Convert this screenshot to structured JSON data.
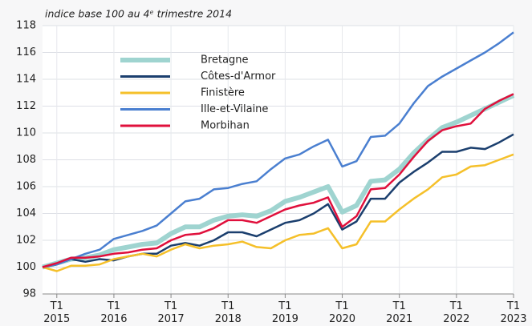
{
  "chart_data": {
    "type": "line",
    "title": "indice base 100 au 4ᵉ trimestre 2014",
    "categories": [
      null,
      "T1 2015",
      null,
      null,
      null,
      "T1 2016",
      null,
      null,
      null,
      "T1 2017",
      null,
      null,
      null,
      "T1 2018",
      null,
      null,
      null,
      "T1 2019",
      null,
      null,
      null,
      "T1 2020",
      null,
      null,
      null,
      "T1 2021",
      null,
      null,
      null,
      "T1 2022",
      null,
      null,
      null,
      "T1 2023"
    ],
    "ylim": [
      98,
      118
    ],
    "yticks": [
      98,
      100,
      102,
      104,
      106,
      108,
      110,
      112,
      114,
      116,
      118
    ],
    "grid": true,
    "legend": "upper-left",
    "series": [
      {
        "name": "Bretagne",
        "color": "#9fd4d0",
        "values": [
          100,
          100.3,
          100.6,
          100.7,
          100.9,
          101.3,
          101.5,
          101.7,
          101.8,
          102.5,
          103.0,
          103.0,
          103.5,
          103.8,
          103.9,
          103.8,
          104.2,
          104.9,
          105.2,
          105.6,
          106.0,
          104.1,
          104.6,
          106.4,
          106.5,
          107.3,
          108.5,
          109.5,
          110.4,
          110.8,
          111.3,
          111.8,
          112.3,
          112.8
        ]
      },
      {
        "name": "Côtes-d'Armor",
        "color": "#1b3f6e",
        "values": [
          100,
          100.2,
          100.6,
          100.4,
          100.6,
          100.5,
          100.8,
          101.0,
          101.0,
          101.6,
          101.8,
          101.6,
          102.0,
          102.6,
          102.6,
          102.3,
          102.8,
          103.3,
          103.5,
          104.0,
          104.7,
          102.8,
          103.4,
          105.1,
          105.1,
          106.3,
          107.1,
          107.8,
          108.6,
          108.6,
          108.9,
          108.8,
          109.3,
          109.9
        ]
      },
      {
        "name": "Finistère",
        "color": "#f5c02a",
        "values": [
          100,
          99.7,
          100.1,
          100.1,
          100.2,
          100.6,
          100.8,
          101.0,
          100.8,
          101.3,
          101.7,
          101.4,
          101.6,
          101.7,
          101.9,
          101.5,
          101.4,
          102.0,
          102.4,
          102.5,
          102.9,
          101.4,
          101.7,
          103.4,
          103.4,
          104.3,
          105.1,
          105.8,
          106.7,
          106.9,
          107.5,
          107.6,
          108.0,
          108.4
        ]
      },
      {
        "name": "Ille-et-Vilaine",
        "color": "#4a7fd0",
        "values": [
          100,
          100.2,
          100.6,
          101.0,
          101.3,
          102.1,
          102.4,
          102.7,
          103.1,
          104.0,
          104.9,
          105.1,
          105.8,
          105.9,
          106.2,
          106.4,
          107.3,
          108.1,
          108.4,
          109.0,
          109.5,
          107.5,
          107.9,
          109.7,
          109.8,
          110.7,
          112.2,
          113.5,
          114.2,
          114.8,
          115.4,
          116.0,
          116.7,
          117.5
        ]
      },
      {
        "name": "Morbihan",
        "color": "#e0103c",
        "values": [
          100,
          100.3,
          100.7,
          100.7,
          100.8,
          101.0,
          101.1,
          101.3,
          101.4,
          102.0,
          102.4,
          102.5,
          102.9,
          103.5,
          103.5,
          103.3,
          103.8,
          104.3,
          104.6,
          104.8,
          105.2,
          103.0,
          103.8,
          105.8,
          105.9,
          106.9,
          108.2,
          109.4,
          110.2,
          110.5,
          110.7,
          111.8,
          112.4,
          112.9
        ]
      }
    ]
  }
}
